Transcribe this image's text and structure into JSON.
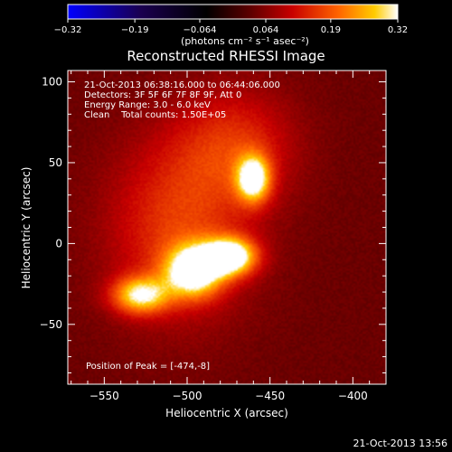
{
  "chart_data": {
    "type": "heatmap",
    "title": "Reconstructed RHESSI Image",
    "xlabel": "Heliocentric X (arcsec)",
    "ylabel": "Heliocentric Y (arcsec)",
    "xlim": [
      -572,
      -380
    ],
    "ylim": [
      -87,
      107
    ],
    "x_ticks": [
      -550,
      -500,
      -450,
      -400
    ],
    "y_ticks": [
      -50,
      0,
      50,
      100
    ],
    "x_tick_labels": [
      "−550",
      "−500",
      "−450",
      "−400"
    ],
    "y_tick_labels": [
      "−50",
      "0",
      "50",
      "100"
    ],
    "colorbar": {
      "ticks": [
        -0.32,
        -0.19,
        -0.064,
        0.064,
        0.19,
        0.32
      ],
      "tick_labels": [
        "−0.32",
        "−0.19",
        "−0.064",
        "0.064",
        "0.19",
        "0.32"
      ],
      "range": [
        -0.32,
        0.32
      ],
      "units": "(photons cm⁻² s⁻¹ asec⁻²)",
      "colors": [
        "#0000ff",
        "#000000",
        "#5a0000",
        "#c80000",
        "#ff6400",
        "#ffcc00",
        "#ffffff"
      ]
    },
    "sources": [
      {
        "x": -528,
        "y": -32,
        "peak": 0.24,
        "size_x": 12,
        "size_y": 8
      },
      {
        "x": -496,
        "y": -17,
        "peak": 0.3,
        "size_x": 12,
        "size_y": 11
      },
      {
        "x": -474,
        "y": -8,
        "peak": 0.32,
        "size_x": 11,
        "size_y": 8
      },
      {
        "x": -460,
        "y": 40,
        "peak": 0.28,
        "size_x": 7,
        "size_y": 10
      },
      {
        "x": -505,
        "y": 10,
        "peak": 0.12,
        "size_x": 30,
        "size_y": 40
      },
      {
        "x": -470,
        "y": 60,
        "peak": 0.1,
        "size_x": 25,
        "size_y": 25
      }
    ],
    "annotations": [
      "21-Oct-2013 06:38:16.000 to 06:44:06.000",
      "Detectors: 3F 5F 6F 7F 8F 9F, Att 0",
      "Energy Range: 3.0 - 6.0 keV",
      "Clean    Total counts: 1.50E+05"
    ],
    "peak_label": "Position of Peak = [-474,-8]",
    "timestamp": "21-Oct-2013 13:56"
  }
}
